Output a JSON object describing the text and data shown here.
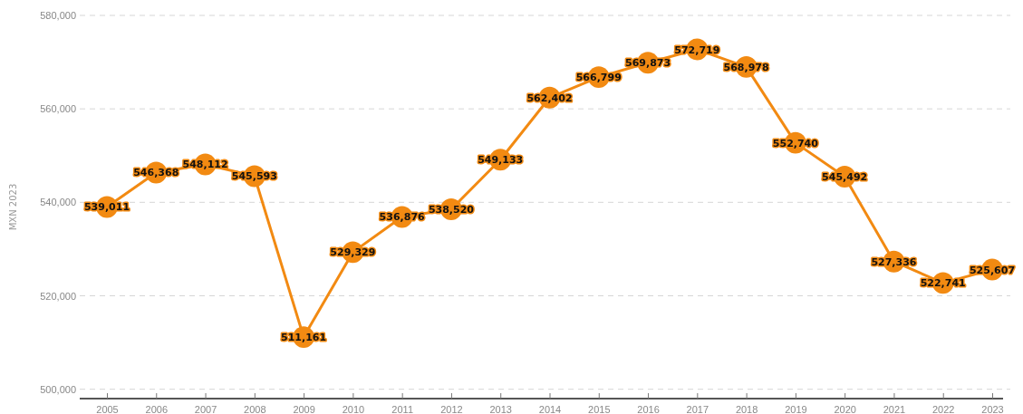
{
  "chart_data": {
    "type": "line",
    "ylabel": "MXN 2023",
    "categories": [
      "2005",
      "2006",
      "2007",
      "2008",
      "2009",
      "2010",
      "2011",
      "2012",
      "2013",
      "2014",
      "2015",
      "2016",
      "2017",
      "2018",
      "2019",
      "2020",
      "2021",
      "2022",
      "2023"
    ],
    "series": [
      {
        "color": "#f28a12",
        "values": [
          539011,
          546368,
          548112,
          545593,
          511161,
          529329,
          536876,
          538520,
          549133,
          562402,
          566799,
          569873,
          572719,
          568978,
          552740,
          545492,
          527336,
          522741,
          525607
        ],
        "value_labels": [
          "539,011",
          "546,368",
          "548,112",
          "545,593",
          "511,161",
          "529,329",
          "536,876",
          "538,520",
          "549,133",
          "562,402",
          "566,799",
          "569,873",
          "572,719",
          "568,978",
          "552,740",
          "545,492",
          "527,336",
          "522,741",
          "525,607"
        ]
      }
    ],
    "ylim": [
      498000,
      580000
    ],
    "yticks": [
      {
        "value": 500000,
        "label": "500,000"
      },
      {
        "value": 520000,
        "label": "520,000"
      },
      {
        "value": 540000,
        "label": "540,000"
      },
      {
        "value": 560000,
        "label": "560,000"
      },
      {
        "value": 580000,
        "label": "580,000"
      }
    ],
    "grid": "y",
    "marker": "circle",
    "line_style": "solid"
  }
}
